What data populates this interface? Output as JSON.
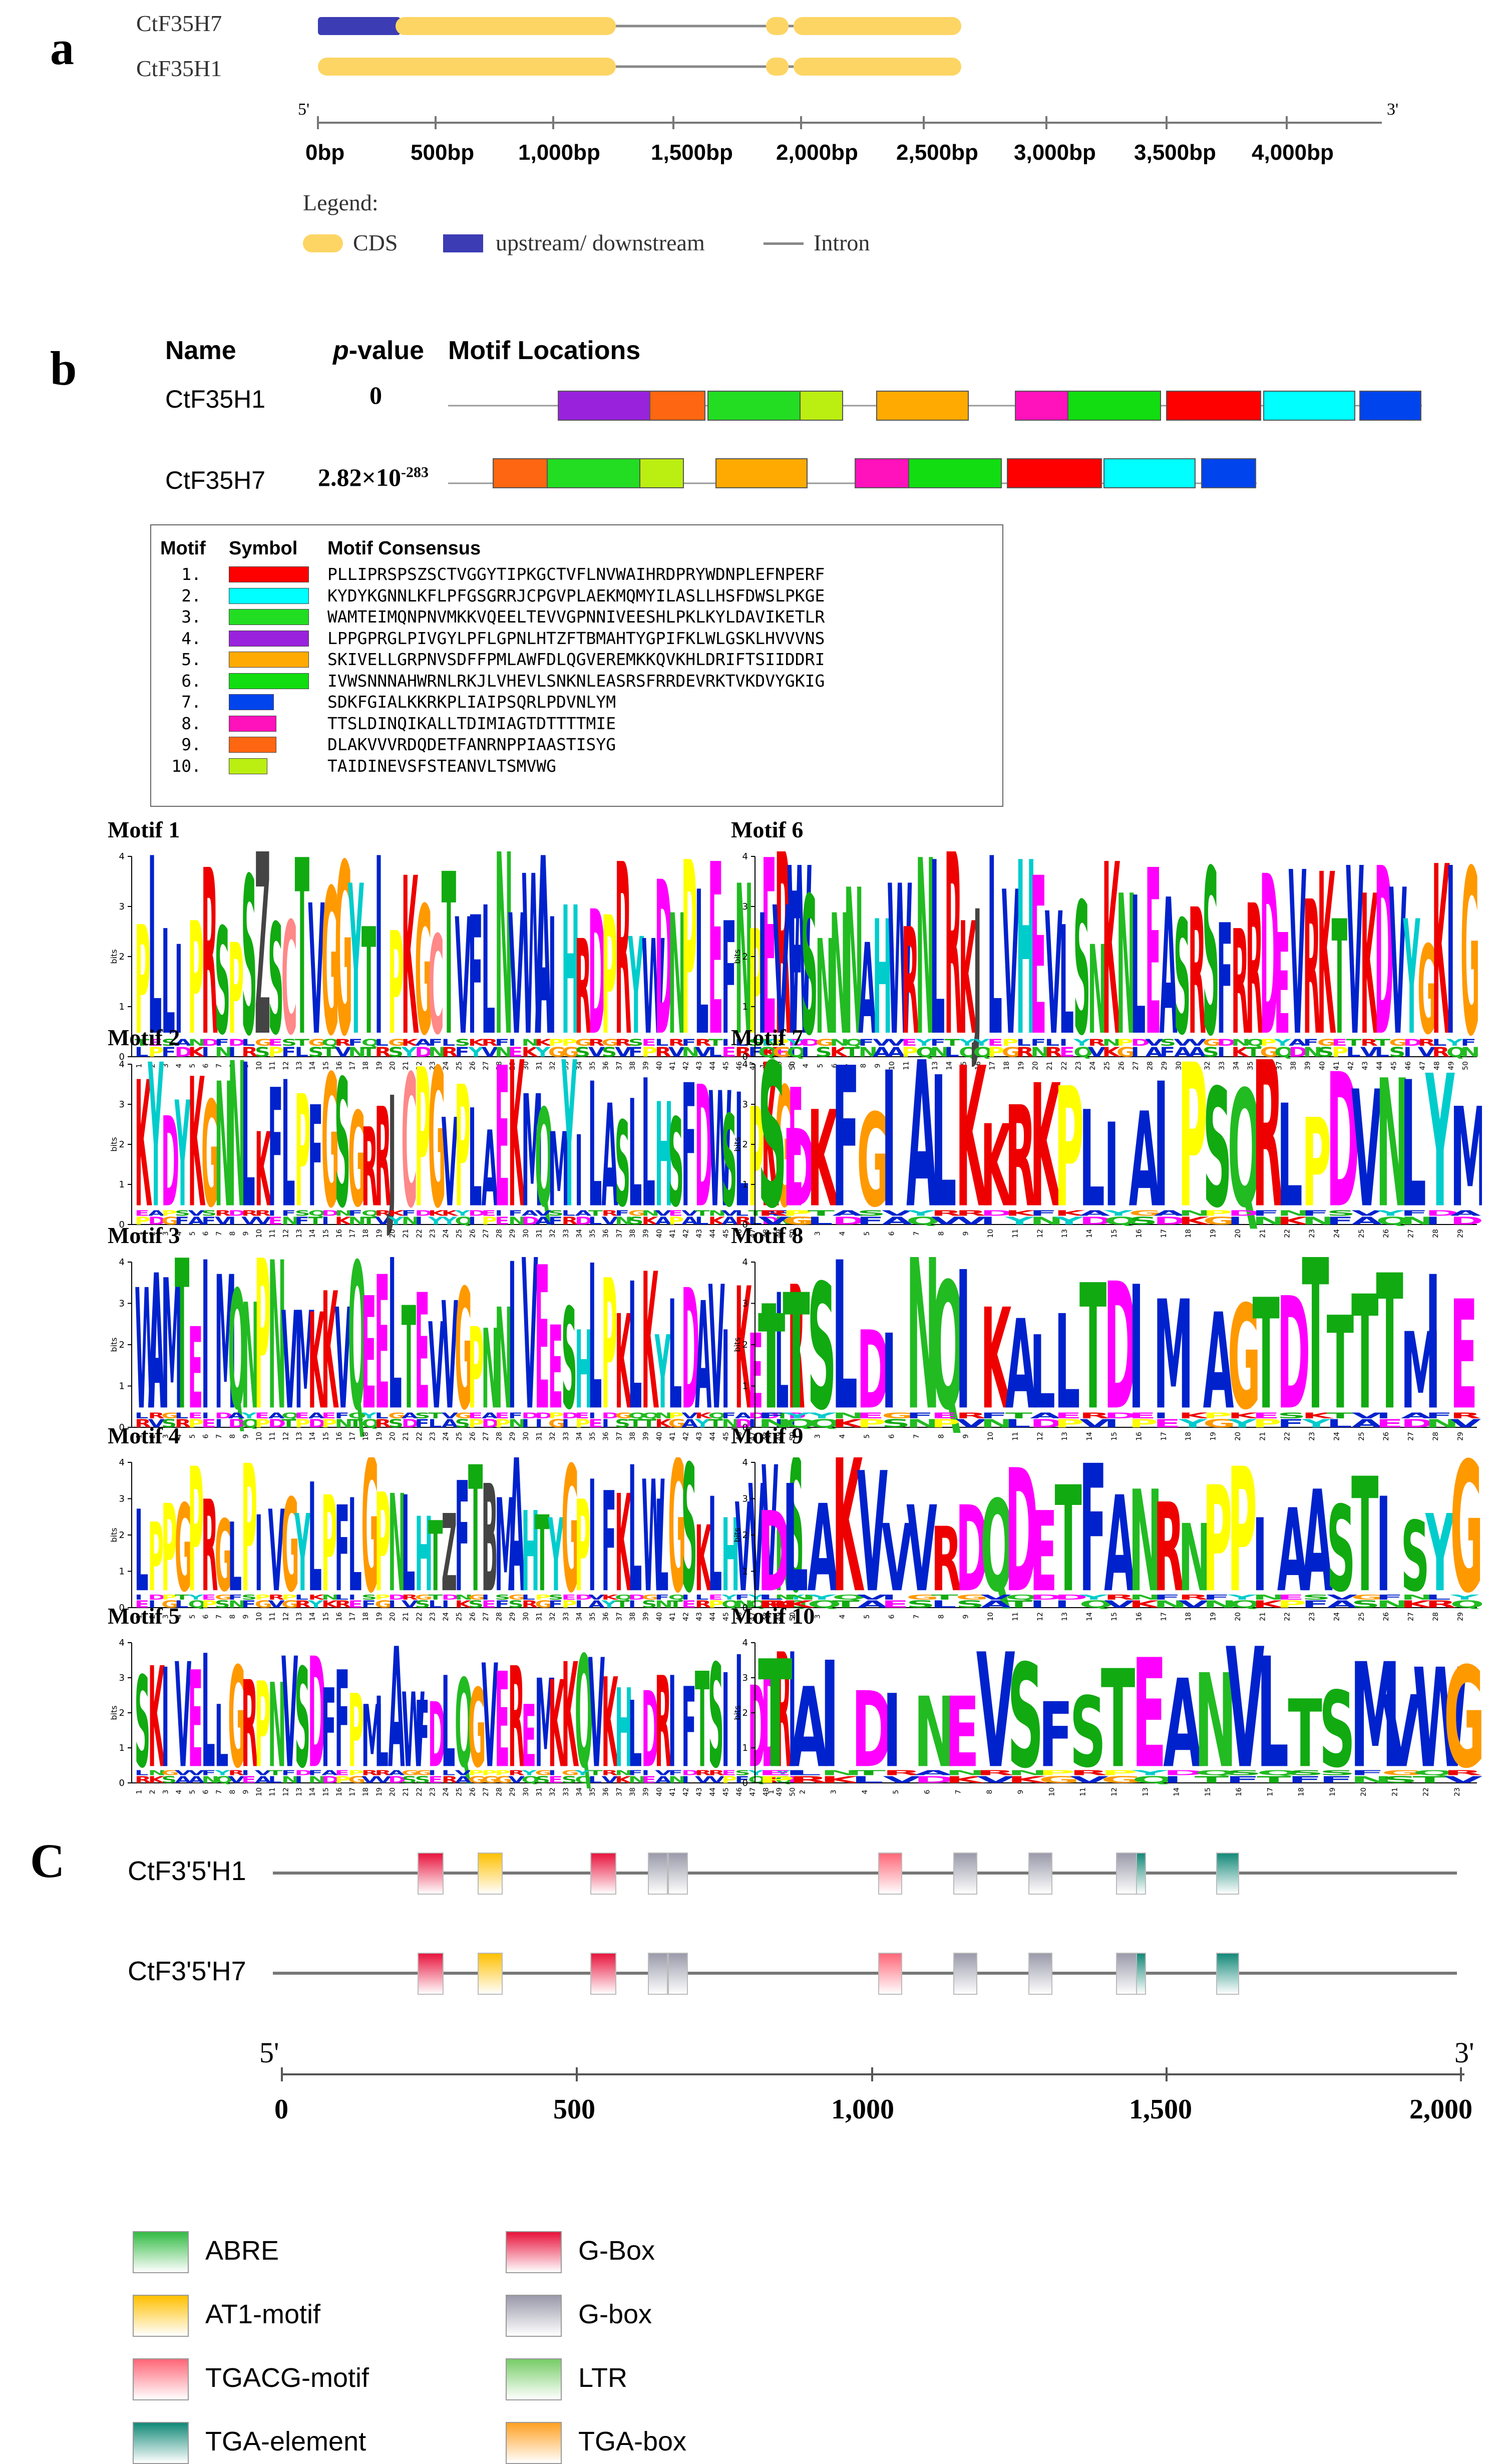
{
  "panel_a": {
    "letter": "a",
    "genes": [
      "CtF35H7",
      "CtF35H1"
    ],
    "end5": "5'",
    "end3": "3'",
    "ticks": [
      "0bp",
      "500bp",
      "1,000bp",
      "1,500bp",
      "2,000bp",
      "2,500bp",
      "3,000bp",
      "3,500bp",
      "4,000bp"
    ],
    "legend_title": "Legend:",
    "legend": [
      {
        "label": "CDS",
        "color": "#fdd564"
      },
      {
        "label": "upstream/ downstream",
        "color": "#3c3cb4"
      },
      {
        "label": "Intron",
        "color": "#888888"
      }
    ]
  },
  "panel_b": {
    "letter": "b",
    "head_name": "Name",
    "head_p": "p",
    "head_p_rest": "-value",
    "head_loc": "Motif Locations",
    "genes": [
      {
        "name": "CtF35H1",
        "pvalue": "0",
        "pvalue_exp": "",
        "motifs": [
          4,
          9,
          3,
          10,
          5,
          8,
          6,
          1,
          2,
          7
        ]
      },
      {
        "name": "CtF35H7",
        "pvalue": "2.82×10",
        "pvalue_exp": "-283",
        "motifs": [
          9,
          3,
          10,
          5,
          8,
          6,
          1,
          2,
          7
        ]
      }
    ],
    "table_head": [
      "Motif",
      "Symbol",
      "Motif Consensus"
    ],
    "motifs": [
      {
        "num": "1.",
        "color": "#ff0000",
        "consensus": "PLLIPRSPSZSCTVGGYTIPKGCTVFLNVWAIHRDPRYWDNPLEFNPERF"
      },
      {
        "num": "2.",
        "color": "#00ffff",
        "consensus": "KYDYKGNNLKFLPFGSGRRJCPGVPLAEKMQMYILASLLHSFDWSLPKGE"
      },
      {
        "num": "3.",
        "color": "#22dd22",
        "consensus": "WAMTEIMQNPNVMKKVQEELTEVVGPNNIVEESHLPKLKYLDAVIKETLR"
      },
      {
        "num": "4.",
        "color": "#9922dd",
        "consensus": "LPPGPRGLPIVGYLPFLGPNLHTZFTBMAHTYGPIFKLWLGSKLHVVVNS"
      },
      {
        "num": "5.",
        "color": "#ffaa00",
        "consensus": "SKIVELLGRPNVSDFFPMLAWFDLQGVEREMKKQVKHLDRIFTSIIDDRI"
      },
      {
        "num": "6.",
        "color": "#11dd11",
        "consensus": "IVWSNNNAHWRNLRKJLVHEVLSNKNLEASRSFRRDEVRKTVKDVYGKIG"
      },
      {
        "num": "7.",
        "color": "#0044ee",
        "consensus": "SDKFGIALKKRKPLIAIPSQRLPDVNLYM"
      },
      {
        "num": "8.",
        "color": "#ff11bb",
        "consensus": "TTSLDINQIKALLTDIMIAGTDTTTTMIE"
      },
      {
        "num": "9.",
        "color": "#ff6611",
        "consensus": "DLAKVVVRDQDETFANRNPPIAASTISYG"
      },
      {
        "num": "10.",
        "color": "#bbee11",
        "consensus": "TAIDINEVSFSTEANVLTSMVWG"
      }
    ]
  },
  "logos": [
    {
      "title": "Motif 1",
      "seq": "PLLIPRSPSZSCTVGGYTIPKGCTVFLNVWAIHRDPRYWDNPLEFNPERF"
    },
    {
      "title": "Motif 6",
      "seq": "IVWSNNNAHWRNLRKJLVHEVLSNKNLEASRSFRRDEVRKTVKDVYGKIG"
    },
    {
      "title": "Motif 2",
      "seq": "KYDYKGNNLKFLPFGSGRRJCPGVPLAEKMQMYILASLLHSFDWSLPKGE"
    },
    {
      "title": "Motif 7",
      "seq": "SDKFGIALKKRKPLIAIPSQRLPDVNLYM"
    },
    {
      "title": "Motif 3",
      "seq": "WAMTEIMQNPNVMKKVQEELTEVVGPNNIVEESHLPKLKYLDAVIKETLR"
    },
    {
      "title": "Motif 8",
      "seq": "TTSLDINQIKALLTDIMIAGTDTTTTMIE"
    },
    {
      "title": "Motif 4",
      "seq": "LPPGPRGLPIVGYLPFLGPNLHTZFTBMAHTYGPIFKLWLGSKLHVVVNS"
    },
    {
      "title": "Motif 9",
      "seq": "DLAKVVVRDQDETFANRNPPIAASTISYG"
    },
    {
      "title": "Motif 5",
      "seq": "SKIVELLGRPNVSDFFPMLAWFDLQGVEREMKKQVKHLDRIFTSIIDDRI"
    },
    {
      "title": "Motif 10",
      "seq": "TAIDINEVSFSTEANVLTSMVWG"
    }
  ],
  "logo_axis_label": "bits",
  "logo_axis_ticks": [
    "0",
    "1",
    "2",
    "3",
    "4"
  ],
  "aa_colors": {
    "AILMFWV": "#0022cc",
    "RK": "#ee0000",
    "DE": "#ff00ff",
    "NQ": "#22bb22",
    "ST": "#11aa11",
    "G": "#ff9900",
    "P": "#ffff00",
    "HY": "#00cccc",
    "C": "#ff8888",
    "other": "#444444"
  },
  "panel_c": {
    "letter": "C",
    "genes": [
      "CtF3'5'H1",
      "CtF3'5'H7"
    ],
    "end5": "5'",
    "end3": "3'",
    "ticks": [
      "0",
      "500",
      "1,000",
      "1,500",
      "2,000"
    ],
    "legend": [
      {
        "label": "ABRE",
        "color": "#33bb44"
      },
      {
        "label": "G-Box",
        "color": "#e8123c"
      },
      {
        "label": "AT1-motif",
        "color": "#ffc000"
      },
      {
        "label": "G-box",
        "color": "#9999aa"
      },
      {
        "label": "TGACG-motif",
        "color": "#ff6677"
      },
      {
        "label": "LTR",
        "color": "#77cc66"
      },
      {
        "label": "TGA-element",
        "color": "#118877"
      },
      {
        "label": "TGA-box",
        "color": "#ffa022"
      }
    ]
  }
}
